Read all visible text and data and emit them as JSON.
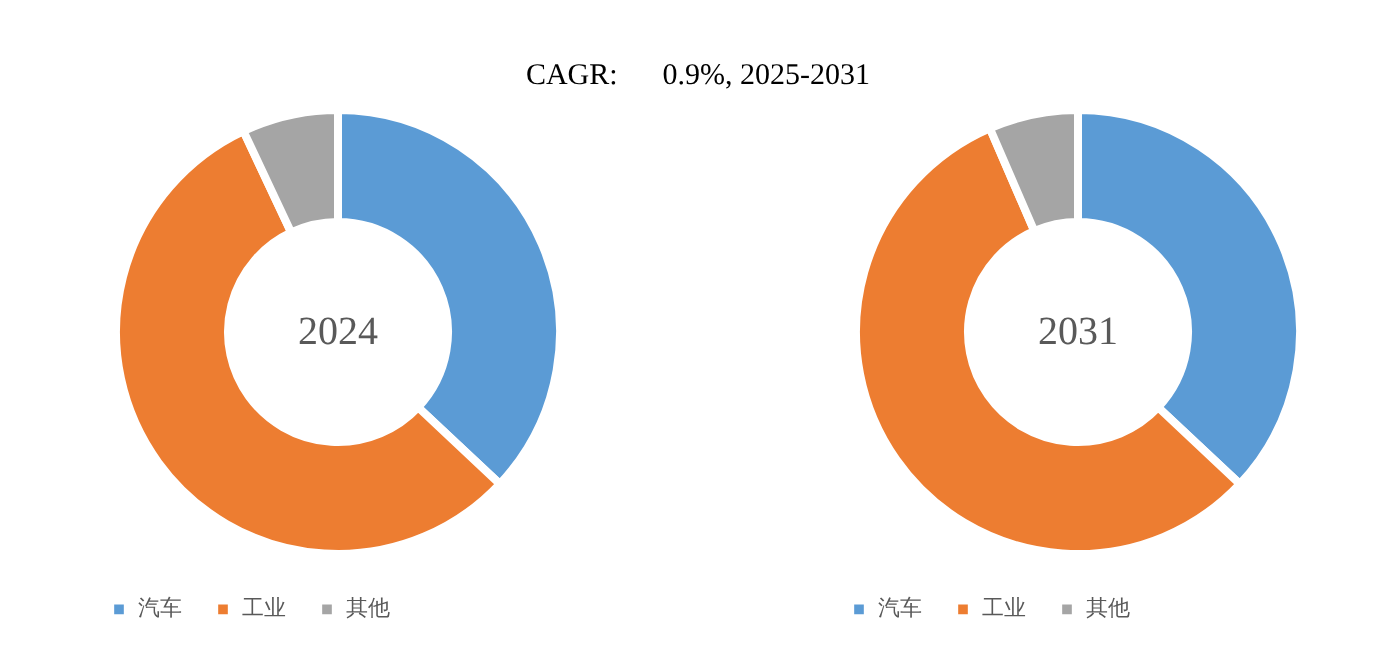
{
  "chart_data": [
    {
      "type": "donut",
      "title": "2024",
      "annotations": [
        "CAGR:      0.9%, 2025-2031"
      ],
      "categories": [
        "汽车",
        "工业",
        "其他"
      ],
      "values": [
        37,
        56,
        7
      ],
      "colors": [
        "#5b9bd5",
        "#ed7d31",
        "#a5a5a5"
      ],
      "legend": "bottom"
    },
    {
      "type": "donut",
      "title": "2031",
      "categories": [
        "汽车",
        "工业",
        "其他"
      ],
      "values": [
        37,
        56.5,
        6.5
      ],
      "colors": [
        "#5b9bd5",
        "#ed7d31",
        "#a5a5a5"
      ],
      "legend": "bottom"
    }
  ]
}
